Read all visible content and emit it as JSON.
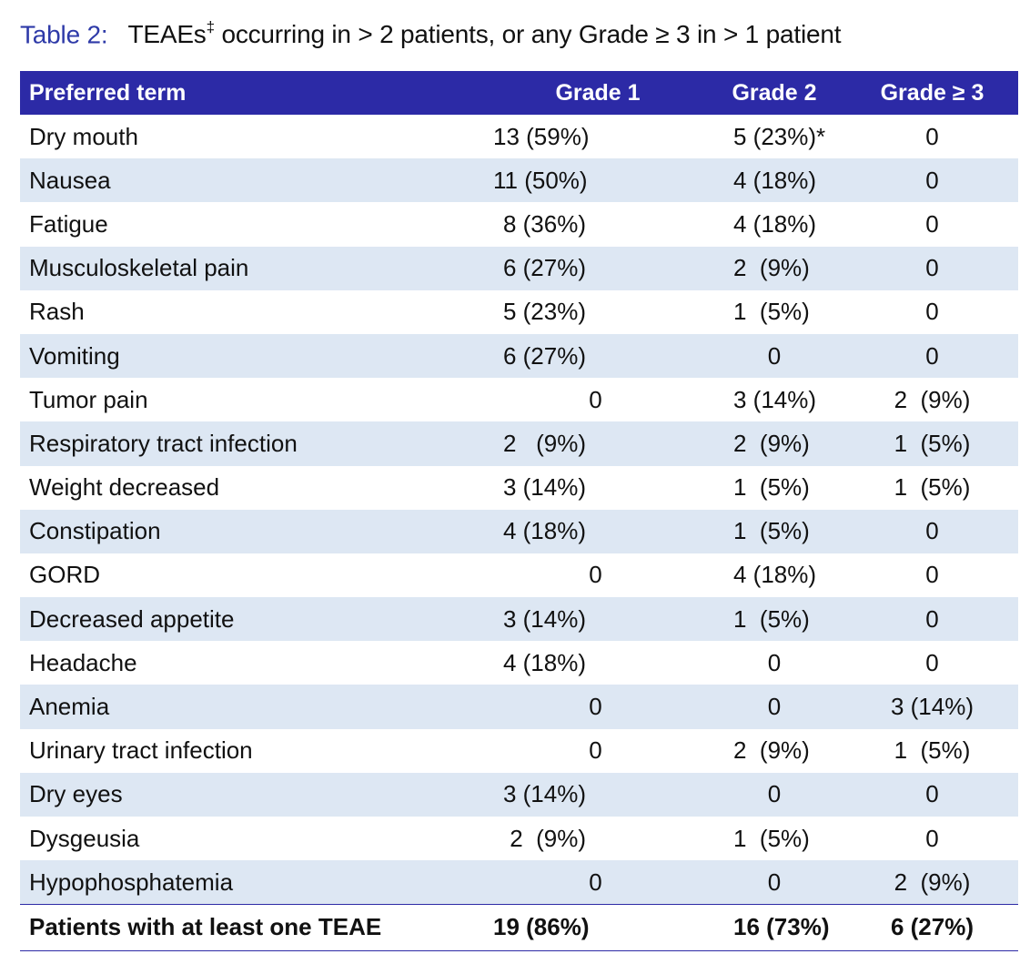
{
  "title": {
    "label": "Table 2:",
    "text_main": "TEAEs",
    "text_sup": "‡",
    "text_rest": " occurring in > 2 patients, or any Grade ≥ 3 in > 1 patient"
  },
  "columns": [
    "Preferred term",
    "Grade 1",
    "Grade 2",
    "Grade ≥ 3"
  ],
  "rows": [
    {
      "term": "Dry mouth",
      "g1": "13 (59%)",
      "g2": "5 (23%)*",
      "g3": "0"
    },
    {
      "term": "Nausea",
      "g1": "11 (50%)",
      "g2": "4 (18%)",
      "g3": "0"
    },
    {
      "term": "Fatigue",
      "g1": "8 (36%)",
      "g2": "4 (18%)",
      "g3": "0"
    },
    {
      "term": "Musculoskeletal pain",
      "g1": "6 (27%)",
      "g2": "2  (9%)",
      "g3": "0"
    },
    {
      "term": "Rash",
      "g1": "5 (23%)",
      "g2": "1  (5%)",
      "g3": "0"
    },
    {
      "term": "Vomiting",
      "g1": "6 (27%)",
      "g2": "0",
      "g3": "0"
    },
    {
      "term": "Tumor pain",
      "g1": "0",
      "g2": "3 (14%)",
      "g3": "2  (9%)"
    },
    {
      "term": "Respiratory tract infection",
      "g1": "2   (9%)",
      "g2": "2  (9%)",
      "g3": "1  (5%)"
    },
    {
      "term": "Weight decreased",
      "g1": "3 (14%)",
      "g2": "1  (5%)",
      "g3": "1  (5%)"
    },
    {
      "term": "Constipation",
      "g1": "4 (18%)",
      "g2": "1  (5%)",
      "g3": "0"
    },
    {
      "term": "GORD",
      "g1": "0",
      "g2": "4 (18%)",
      "g3": "0"
    },
    {
      "term": "Decreased appetite",
      "g1": "3 (14%)",
      "g2": "1  (5%)",
      "g3": "0"
    },
    {
      "term": "Headache",
      "g1": "4 (18%)",
      "g2": "0",
      "g3": "0"
    },
    {
      "term": "Anemia",
      "g1": "0",
      "g2": "0",
      "g3": "3 (14%)"
    },
    {
      "term": "Urinary tract infection",
      "g1": "0",
      "g2": "2  (9%)",
      "g3": "1  (5%)"
    },
    {
      "term": "Dry eyes",
      "g1": "3 (14%)",
      "g2": "0",
      "g3": "0"
    },
    {
      "term": "Dysgeusia",
      "g1": "2  (9%)",
      "g2": "1  (5%)",
      "g3": "0"
    },
    {
      "term": "Hypophosphatemia",
      "g1": "0",
      "g2": "0",
      "g3": "2  (9%)"
    }
  ],
  "total": {
    "term": "Patients with at least one TEAE",
    "g1": "19 (86%)",
    "g2": "16 (73%)",
    "g3": "6 (27%)"
  },
  "colors": {
    "header_bg": "#2c2aa6",
    "row_shade": "#dde7f3",
    "title_label": "#2e3aa8"
  }
}
